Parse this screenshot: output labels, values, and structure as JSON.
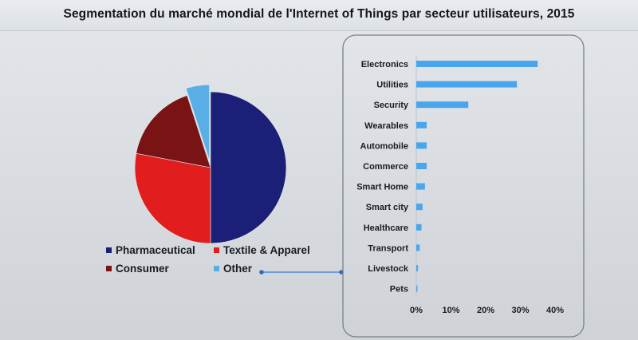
{
  "title": "Segmentation du marché mondial de l'Internet of Things par secteur utilisateurs, 2015",
  "colors": {
    "pharmaceutical": "#1b1f78",
    "textile": "#e11d1d",
    "consumer": "#7a1414",
    "other": "#5aaee6",
    "bar": "#4aa6ec"
  },
  "chart_data": [
    {
      "type": "pie",
      "slices": [
        {
          "label": "Pharmaceutical",
          "value": 50,
          "color_key": "pharmaceutical"
        },
        {
          "label": "Textile & Apparel",
          "value": 28,
          "color_key": "textile"
        },
        {
          "label": "Consumer",
          "value": 17,
          "color_key": "consumer"
        },
        {
          "label": "Other",
          "value": 5,
          "color_key": "other",
          "exploded": true
        }
      ],
      "legend": [
        "Pharmaceutical",
        "Textile & Apparel",
        "Consumer",
        "Other"
      ],
      "legend_position": "bottom"
    },
    {
      "type": "bar",
      "orientation": "horizontal",
      "categories": [
        "Electronics",
        "Utilities",
        "Security",
        "Wearables",
        "Automobile",
        "Commerce",
        "Smart Home",
        "Smart city",
        "Healthcare",
        "Transport",
        "Livestock",
        "Pets"
      ],
      "values": [
        35,
        29,
        15,
        3,
        3,
        3,
        2.5,
        1.8,
        1.5,
        1,
        0.5,
        0.3
      ],
      "xlim": [
        0,
        40
      ],
      "xticks": [
        "0%",
        "10%",
        "20%",
        "30%",
        "40%"
      ],
      "grid": false
    }
  ]
}
